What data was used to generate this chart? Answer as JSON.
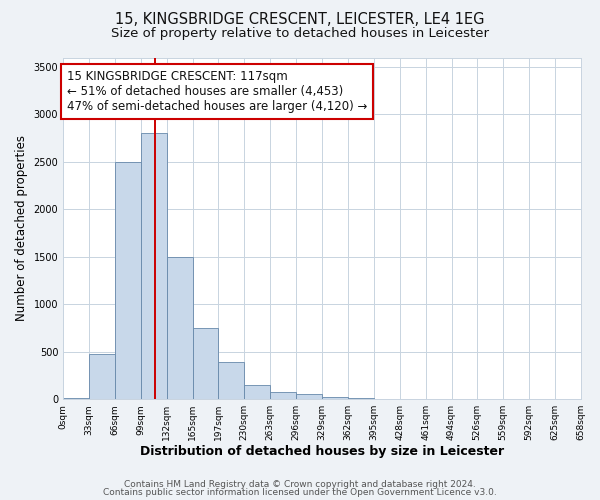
{
  "title": "15, KINGSBRIDGE CRESCENT, LEICESTER, LE4 1EG",
  "subtitle": "Size of property relative to detached houses in Leicester",
  "xlabel": "Distribution of detached houses by size in Leicester",
  "ylabel": "Number of detached properties",
  "bin_edges": [
    0,
    33,
    66,
    99,
    132,
    165,
    197,
    230,
    263,
    296,
    329,
    362,
    395,
    428,
    461,
    494,
    526,
    559,
    592,
    625,
    658
  ],
  "bar_heights": [
    8,
    470,
    2500,
    2800,
    1500,
    750,
    390,
    145,
    80,
    50,
    20,
    10,
    5,
    0,
    0,
    0,
    0,
    0,
    0,
    0
  ],
  "bar_color": "#c8d8ea",
  "bar_edge_color": "#6688aa",
  "vline_x": 117,
  "vline_color": "#cc0000",
  "annotation_text": "15 KINGSBRIDGE CRESCENT: 117sqm\n← 51% of detached houses are smaller (4,453)\n47% of semi-detached houses are larger (4,120) →",
  "annotation_box_edge_color": "#cc0000",
  "annotation_fontsize": 8.5,
  "ylim": [
    0,
    3600
  ],
  "yticks": [
    0,
    500,
    1000,
    1500,
    2000,
    2500,
    3000,
    3500
  ],
  "tick_labels": [
    "0sqm",
    "33sqm",
    "66sqm",
    "99sqm",
    "132sqm",
    "165sqm",
    "197sqm",
    "230sqm",
    "263sqm",
    "296sqm",
    "329sqm",
    "362sqm",
    "395sqm",
    "428sqm",
    "461sqm",
    "494sqm",
    "526sqm",
    "559sqm",
    "592sqm",
    "625sqm",
    "658sqm"
  ],
  "footer_line1": "Contains HM Land Registry data © Crown copyright and database right 2024.",
  "footer_line2": "Contains public sector information licensed under the Open Government Licence v3.0.",
  "background_color": "#eef2f6",
  "plot_background_color": "#ffffff",
  "grid_color": "#c8d4e0",
  "title_fontsize": 10.5,
  "subtitle_fontsize": 9.5,
  "xlabel_fontsize": 9,
  "ylabel_fontsize": 8.5,
  "footer_fontsize": 6.5,
  "tick_fontsize": 6.5
}
